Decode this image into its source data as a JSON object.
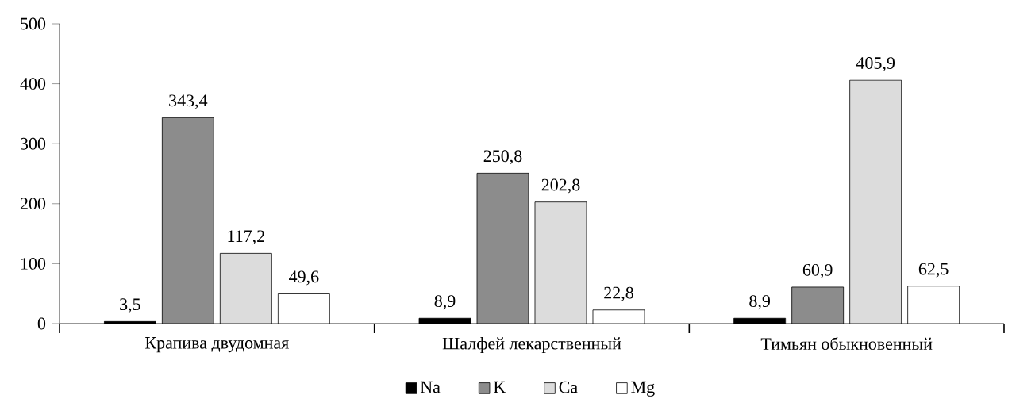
{
  "chart_data": {
    "type": "bar",
    "categories": [
      "Крапива двудомная",
      "Шалфей лекарственный",
      "Тимьян обыкновенный"
    ],
    "series": [
      {
        "name": "Na",
        "color": "#000000",
        "values": [
          3.5,
          8.9,
          8.9
        ],
        "value_labels": [
          "3,5",
          "8,9",
          "8,9"
        ]
      },
      {
        "name": "K",
        "color": "#8c8c8c",
        "values": [
          343.4,
          250.8,
          60.9
        ],
        "value_labels": [
          "343,4",
          "250,8",
          "60,9"
        ]
      },
      {
        "name": "Ca",
        "color": "#dcdcdc",
        "values": [
          117.2,
          202.8,
          405.9
        ],
        "value_labels": [
          "117,2",
          "202,8",
          "405,9"
        ]
      },
      {
        "name": "Mg",
        "color": "#ffffff",
        "values": [
          49.6,
          22.8,
          62.5
        ],
        "value_labels": [
          "49,6",
          "22,8",
          "62,5"
        ]
      }
    ],
    "ylim": [
      0,
      500
    ],
    "yticks": [
      0,
      100,
      200,
      300,
      400,
      500
    ],
    "legend": "bottom"
  }
}
